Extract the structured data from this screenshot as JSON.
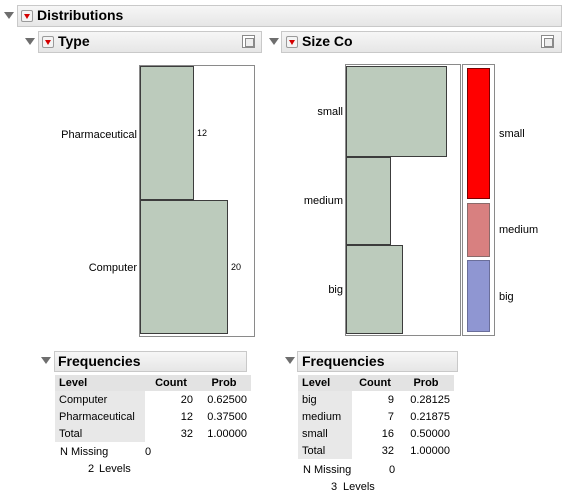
{
  "distributions": {
    "title": "Distributions"
  },
  "type_panel": {
    "title": "Type",
    "categories": [
      "Pharmaceutical",
      "Computer"
    ],
    "counts": [
      "12",
      "20"
    ],
    "bar_color": "#bccbbc"
  },
  "size_panel": {
    "title": "Size Co",
    "categories": [
      "small",
      "medium",
      "big"
    ],
    "mosaic_labels": [
      "small",
      "medium",
      "big"
    ],
    "mosaic_colors": [
      "#ff0000",
      "#d88080",
      "#8f96d2"
    ]
  },
  "freq_type": {
    "title": "Frequencies",
    "headers": [
      "Level",
      "Count",
      "Prob"
    ],
    "rows": [
      [
        "Computer",
        "20",
        "0.62500"
      ],
      [
        "Pharmaceutical",
        "12",
        "0.37500"
      ],
      [
        "Total",
        "32",
        "1.00000"
      ]
    ],
    "n_missing_label": "N Missing",
    "n_missing_value": "0",
    "levels_count": "2",
    "levels_label": "Levels"
  },
  "freq_size": {
    "title": "Frequencies",
    "headers": [
      "Level",
      "Count",
      "Prob"
    ],
    "rows": [
      [
        "big",
        "9",
        "0.28125"
      ],
      [
        "medium",
        "7",
        "0.21875"
      ],
      [
        "small",
        "16",
        "0.50000"
      ],
      [
        "Total",
        "32",
        "1.00000"
      ]
    ],
    "n_missing_label": "N Missing",
    "n_missing_value": "0",
    "levels_count": "3",
    "levels_label": "Levels"
  },
  "chart_data": [
    {
      "type": "bar",
      "orientation": "horizontal",
      "title": "Type",
      "categories": [
        "Pharmaceutical",
        "Computer"
      ],
      "values": [
        12,
        20
      ]
    },
    {
      "type": "bar",
      "orientation": "horizontal",
      "title": "Size Co",
      "categories": [
        "small",
        "medium",
        "big"
      ],
      "values": [
        16,
        7,
        9
      ]
    }
  ]
}
